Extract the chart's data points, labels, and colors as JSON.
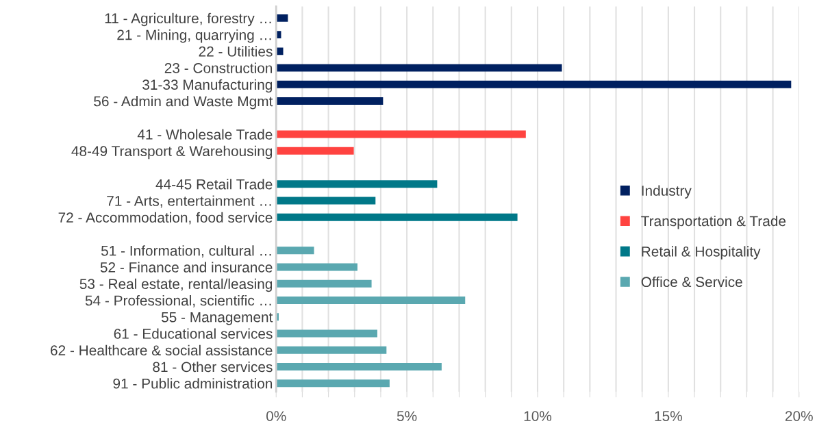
{
  "chart_data": {
    "type": "bar",
    "orientation": "horizontal",
    "categories": [
      "11 - Agriculture, forestry …",
      "21 - Mining, quarrying …",
      "22 - Utilities",
      "23 - Construction",
      "31-33 Manufacturing",
      "56 - Admin and Waste Mgmt",
      null,
      "41 - Wholesale Trade",
      "48-49 Transport & Warehousing",
      null,
      "44-45 Retail Trade",
      "71 - Arts, entertainment …",
      "72 - Accommodation, food service",
      null,
      "51 - Information, cultural …",
      "52 - Finance and insurance",
      "53 - Real estate, rental/leasing",
      "54 - Professional, scientific …",
      "55 - Management",
      "61 - Educational services",
      "62 - Healthcare & social assistance",
      "81 - Other services",
      "91 - Public administration"
    ],
    "series": [
      {
        "name": "Industry",
        "color": "#002060",
        "values": [
          0.45,
          0.19,
          0.27,
          10.93,
          19.7,
          4.09,
          null,
          null,
          null,
          null,
          null,
          null,
          null,
          null,
          null,
          null,
          null,
          null,
          null,
          null,
          null,
          null,
          null
        ]
      },
      {
        "name": "Transportation & Trade",
        "color": "#ff4340",
        "values": [
          null,
          null,
          null,
          null,
          null,
          null,
          null,
          9.55,
          2.97,
          null,
          null,
          null,
          null,
          null,
          null,
          null,
          null,
          null,
          null,
          null,
          null,
          null,
          null
        ]
      },
      {
        "name": "Retail & Hospitality",
        "color": "#007888",
        "values": [
          null,
          null,
          null,
          null,
          null,
          null,
          null,
          null,
          null,
          null,
          6.16,
          3.8,
          9.23,
          null,
          null,
          null,
          null,
          null,
          null,
          null,
          null,
          null,
          null
        ]
      },
      {
        "name": "Office & Service",
        "color": "#5aa8b0",
        "values": [
          null,
          null,
          null,
          null,
          null,
          null,
          null,
          null,
          null,
          null,
          null,
          null,
          null,
          null,
          1.45,
          3.11,
          3.65,
          7.23,
          0.1,
          3.87,
          4.22,
          6.33,
          4.34
        ]
      }
    ],
    "xlim": [
      0,
      20
    ],
    "xticks": [
      {
        "value": 0,
        "label": "0%"
      },
      {
        "value": 1,
        "label": null
      },
      {
        "value": 2,
        "label": null
      },
      {
        "value": 3,
        "label": null
      },
      {
        "value": 4,
        "label": null
      },
      {
        "value": 5,
        "label": "5%"
      },
      {
        "value": 6,
        "label": null
      },
      {
        "value": 7,
        "label": null
      },
      {
        "value": 8,
        "label": null
      },
      {
        "value": 9,
        "label": null
      },
      {
        "value": 10,
        "label": "10%"
      },
      {
        "value": 11,
        "label": null
      },
      {
        "value": 12,
        "label": null
      },
      {
        "value": 13,
        "label": null
      },
      {
        "value": 14,
        "label": null
      },
      {
        "value": 15,
        "label": "15%"
      },
      {
        "value": 16,
        "label": null
      },
      {
        "value": 17,
        "label": null
      },
      {
        "value": 18,
        "label": null
      },
      {
        "value": 19,
        "label": null
      },
      {
        "value": 20,
        "label": "20%"
      }
    ],
    "grid": "x",
    "legend": "right"
  }
}
